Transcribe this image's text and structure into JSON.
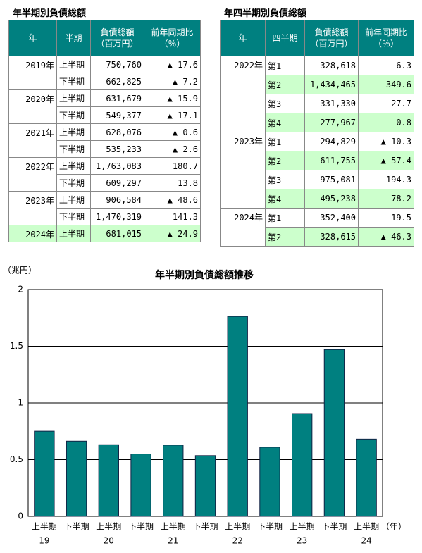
{
  "table1": {
    "title": "年半期別負債総額",
    "header": [
      [
        "年"
      ],
      [
        "半期"
      ],
      [
        "負債総額",
        "（百万円）"
      ],
      [
        "前年同期比",
        "（％）"
      ]
    ],
    "groups": [
      {
        "year": "2019年",
        "rows": [
          [
            "上半期",
            "750,760",
            "▲ 17.6"
          ],
          [
            "下半期",
            "662,825",
            "▲ 7.2"
          ]
        ]
      },
      {
        "year": "2020年",
        "rows": [
          [
            "上半期",
            "631,679",
            "▲ 15.9"
          ],
          [
            "下半期",
            "549,377",
            "▲ 17.1"
          ]
        ]
      },
      {
        "year": "2021年",
        "rows": [
          [
            "上半期",
            "628,076",
            "▲ 0.6"
          ],
          [
            "下半期",
            "535,233",
            "▲ 2.6"
          ]
        ]
      },
      {
        "year": "2022年",
        "rows": [
          [
            "上半期",
            "1,763,083",
            "180.7"
          ],
          [
            "下半期",
            "609,297",
            "13.8"
          ]
        ]
      },
      {
        "year": "2023年",
        "rows": [
          [
            "上半期",
            "906,584",
            "▲ 48.6"
          ],
          [
            "下半期",
            "1,470,319",
            "141.3"
          ]
        ]
      },
      {
        "year": "2024年",
        "rows": [
          [
            "上半期",
            "681,015",
            "▲ 24.9"
          ]
        ]
      }
    ]
  },
  "table2": {
    "title": "年四半期別負債総額",
    "header": [
      [
        "年"
      ],
      [
        "四半期"
      ],
      [
        "負債総額",
        "（百万円）"
      ],
      [
        "前年同期比",
        "（％）"
      ]
    ],
    "groups": [
      {
        "year": "2022年",
        "rows": [
          [
            "第1",
            "328,618",
            "6.3"
          ],
          [
            "第2",
            "1,434,465",
            "349.6"
          ],
          [
            "第3",
            "331,330",
            "27.7"
          ],
          [
            "第4",
            "277,967",
            "0.8"
          ]
        ]
      },
      {
        "year": "2023年",
        "rows": [
          [
            "第1",
            "294,829",
            "▲ 10.3"
          ],
          [
            "第2",
            "611,755",
            "▲ 57.4"
          ],
          [
            "第3",
            "975,081",
            "194.3"
          ],
          [
            "第4",
            "495,238",
            "78.2"
          ]
        ]
      },
      {
        "year": "2024年",
        "rows": [
          [
            "第1",
            "352,400",
            "19.5"
          ],
          [
            "第2",
            "328,615",
            "▲ 46.3"
          ]
        ]
      }
    ]
  },
  "chart_data": {
    "type": "bar",
    "title": "年半期別負債総額推移",
    "y_unit": "（兆円）",
    "x_unit": "（年）",
    "categories": [
      "上半期",
      "下半期",
      "上半期",
      "下半期",
      "上半期",
      "下半期",
      "上半期",
      "下半期",
      "上半期",
      "下半期",
      "上半期"
    ],
    "year_groups": [
      "19",
      "20",
      "21",
      "22",
      "23",
      "24"
    ],
    "values": [
      0.75076,
      0.662825,
      0.631679,
      0.549377,
      0.628076,
      0.535233,
      1.763083,
      0.609297,
      0.906584,
      1.470319,
      0.681015
    ],
    "color": "#008080",
    "ylim": [
      0,
      2
    ],
    "yticks": [
      0,
      0.5,
      1,
      1.5,
      2
    ],
    "grid": true
  }
}
